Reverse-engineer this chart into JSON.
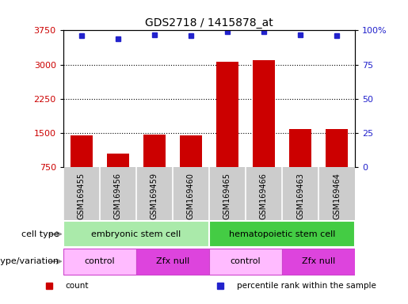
{
  "title": "GDS2718 / 1415878_at",
  "samples": [
    "GSM169455",
    "GSM169456",
    "GSM169459",
    "GSM169460",
    "GSM169465",
    "GSM169466",
    "GSM169463",
    "GSM169464"
  ],
  "counts": [
    1440,
    1050,
    1470,
    1450,
    3070,
    3100,
    1590,
    1580
  ],
  "percentile_ranks": [
    96,
    94,
    97,
    96,
    99,
    99,
    97,
    96
  ],
  "ylim_left": [
    750,
    3750
  ],
  "yticks_left": [
    750,
    1500,
    2250,
    3000,
    3750
  ],
  "ylim_right": [
    0,
    100
  ],
  "yticks_right": [
    0,
    25,
    50,
    75,
    100
  ],
  "bar_color": "#cc0000",
  "dot_color": "#2222cc",
  "cell_type_labels": [
    {
      "label": "embryonic stem cell",
      "start": 0,
      "end": 4,
      "color": "#aaeaaa"
    },
    {
      "label": "hematopoietic stem cell",
      "start": 4,
      "end": 8,
      "color": "#44cc44"
    }
  ],
  "genotype_labels": [
    {
      "label": "control",
      "start": 0,
      "end": 2,
      "color": "#ffbbff"
    },
    {
      "label": "Zfx null",
      "start": 2,
      "end": 4,
      "color": "#dd44dd"
    },
    {
      "label": "control",
      "start": 4,
      "end": 6,
      "color": "#ffbbff"
    },
    {
      "label": "Zfx null",
      "start": 6,
      "end": 8,
      "color": "#dd44dd"
    }
  ],
  "legend_items": [
    {
      "label": "count",
      "color": "#cc0000"
    },
    {
      "label": "percentile rank within the sample",
      "color": "#2222cc"
    }
  ],
  "tick_label_color_left": "#cc0000",
  "tick_label_color_right": "#2222cc",
  "background_color": "#ffffff",
  "sample_panel_color": "#cccccc",
  "grid_dotted_vals": [
    1500,
    2250,
    3000
  ]
}
